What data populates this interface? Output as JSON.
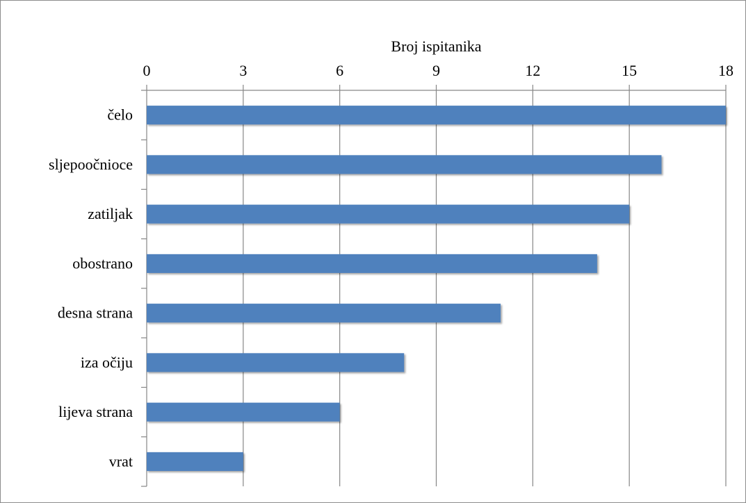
{
  "chart_data": {
    "type": "bar",
    "orientation": "horizontal",
    "title": "",
    "xlabel": "Broj ispitanika",
    "ylabel": "",
    "categories": [
      "čelo",
      "sljepoočnioce",
      "zatiljak",
      "obostrano",
      "desna strana",
      "iza očiju",
      "lijeva strana",
      "vrat"
    ],
    "values": [
      18,
      16,
      15,
      14,
      11,
      8,
      6,
      3
    ],
    "xlim": [
      0,
      18
    ],
    "xticks": [
      0,
      3,
      6,
      9,
      12,
      15,
      18
    ],
    "xtick_labels": [
      "0",
      "3",
      "6",
      "9",
      "12",
      "15",
      "18"
    ],
    "x_axis_position": "top",
    "grid": true,
    "legend": "none",
    "bar_color": "#4f81bd",
    "grid_color": "#868686"
  }
}
